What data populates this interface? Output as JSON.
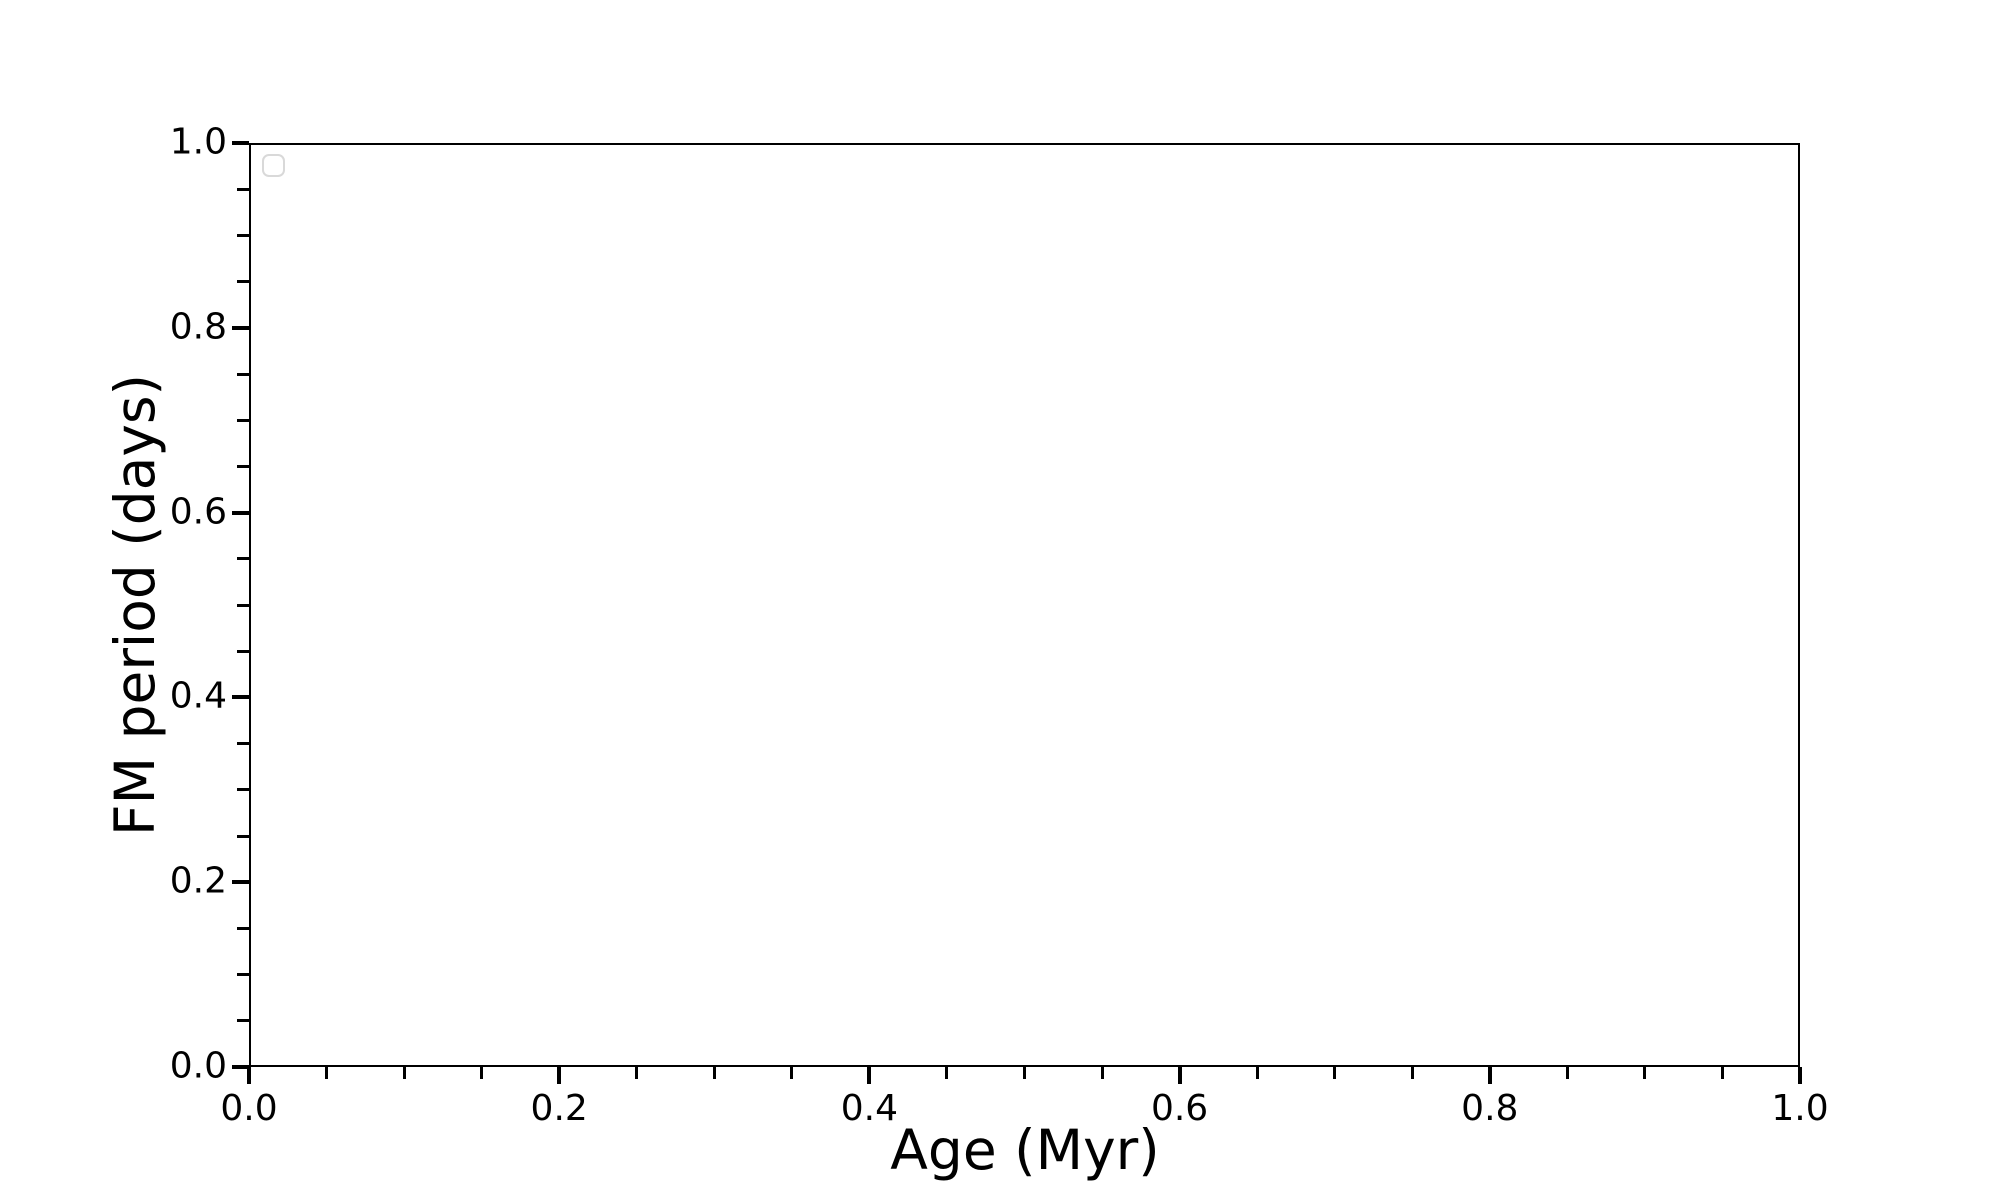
{
  "figure": {
    "background": "#ffffff",
    "axis_color": "#000000",
    "legend_border_color": "#d9d9d9"
  },
  "chart_data": {
    "type": "scatter",
    "title": "",
    "xlabel": "Age (Myr)",
    "ylabel": "FM period (days)",
    "xlim": [
      0.0,
      1.0
    ],
    "ylim": [
      0.0,
      1.0
    ],
    "x_major_ticks": [
      0.0,
      0.2,
      0.4,
      0.6,
      0.8,
      1.0
    ],
    "x_tick_labels": [
      "0.0",
      "0.2",
      "0.4",
      "0.6",
      "0.8",
      "1.0"
    ],
    "y_major_ticks": [
      0.0,
      0.2,
      0.4,
      0.6,
      0.8,
      1.0
    ],
    "y_tick_labels": [
      "0.0",
      "0.2",
      "0.4",
      "0.6",
      "0.8",
      "1.0"
    ],
    "minor_tick_step": 0.05,
    "grid": false,
    "legend": {
      "visible": true,
      "position": "upper left",
      "entries": []
    },
    "series": [],
    "annotations": []
  }
}
